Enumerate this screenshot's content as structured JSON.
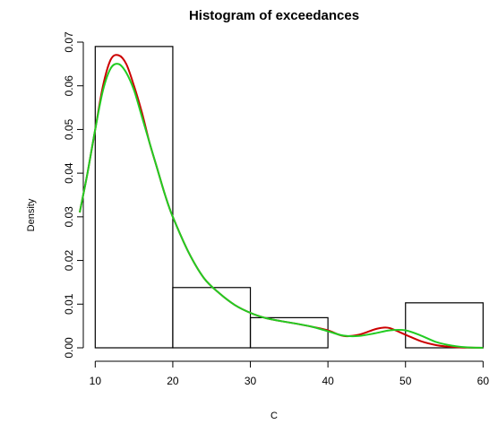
{
  "chart_data": {
    "type": "histogram",
    "title": "Histogram of exceedances",
    "xlabel": "C",
    "ylabel": "Density",
    "xlim": [
      8,
      61
    ],
    "ylim": [
      0,
      0.07
    ],
    "x_ticks": [
      "10",
      "20",
      "30",
      "40",
      "50",
      "60"
    ],
    "y_ticks": [
      "0.00",
      "0.01",
      "0.02",
      "0.03",
      "0.04",
      "0.05",
      "0.06",
      "0.07"
    ],
    "bins": [
      {
        "from": 10,
        "to": 20,
        "density": 0.069
      },
      {
        "from": 20,
        "to": 30,
        "density": 0.0138
      },
      {
        "from": 30,
        "to": 40,
        "density": 0.0069
      },
      {
        "from": 40,
        "to": 50,
        "density": 0.0
      },
      {
        "from": 50,
        "to": 60,
        "density": 0.0103
      }
    ],
    "series": [
      {
        "color": "#cc0000",
        "x": [
          8,
          9,
          10,
          11,
          12,
          13,
          14,
          15,
          16,
          17,
          18,
          19,
          20,
          22,
          24,
          26,
          28,
          30,
          32,
          34,
          36,
          38,
          40,
          42,
          44,
          46,
          47,
          48,
          50,
          52,
          54,
          56,
          58,
          60
        ],
        "y": [
          0.031,
          0.04,
          0.05,
          0.06,
          0.066,
          0.067,
          0.065,
          0.06,
          0.054,
          0.047,
          0.041,
          0.035,
          0.03,
          0.022,
          0.016,
          0.0125,
          0.0098,
          0.008,
          0.0068,
          0.0061,
          0.0055,
          0.0048,
          0.004,
          0.0027,
          0.003,
          0.0042,
          0.0046,
          0.0045,
          0.003,
          0.0015,
          0.0006,
          0.0002,
          5e-05,
          0.0
        ]
      },
      {
        "color": "#22cc22",
        "x": [
          8,
          9,
          10,
          11,
          12,
          13,
          14,
          15,
          16,
          17,
          18,
          19,
          20,
          22,
          24,
          26,
          28,
          30,
          32,
          34,
          36,
          38,
          40,
          42,
          44,
          46,
          48,
          50,
          52,
          54,
          56,
          58,
          60
        ],
        "y": [
          0.031,
          0.04,
          0.05,
          0.059,
          0.064,
          0.065,
          0.063,
          0.059,
          0.053,
          0.047,
          0.041,
          0.035,
          0.03,
          0.022,
          0.016,
          0.0125,
          0.0098,
          0.008,
          0.0068,
          0.0061,
          0.0055,
          0.0048,
          0.0038,
          0.0028,
          0.0027,
          0.0033,
          0.004,
          0.004,
          0.0028,
          0.0013,
          0.0005,
          0.0001,
          0.0
        ]
      }
    ]
  }
}
